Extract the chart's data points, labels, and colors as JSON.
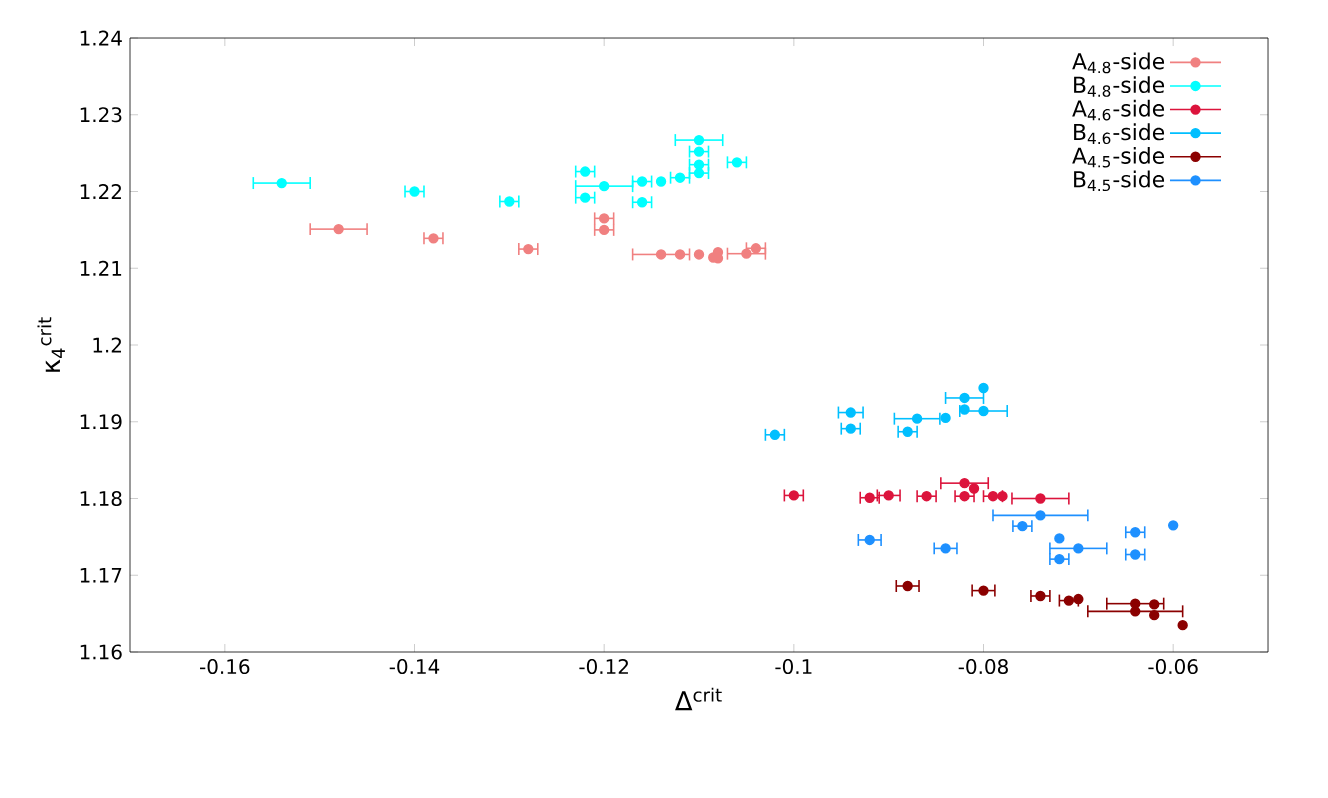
{
  "chart_data": {
    "type": "scatter",
    "xlabel": "Δ$^{crit}$",
    "ylabel": "κ$_{4}$$^{crit}$",
    "xlim": [
      -0.17,
      -0.05
    ],
    "ylim": [
      1.16,
      1.24
    ],
    "xticks": [
      -0.16,
      -0.14,
      -0.12,
      -0.1,
      -0.08,
      -0.06
    ],
    "yticks": [
      1.16,
      1.17,
      1.18,
      1.19,
      1.2,
      1.21,
      1.22,
      1.23,
      1.24
    ],
    "legend": "top right",
    "grid": false,
    "series": [
      {
        "name": "A$_{4.8}$-side",
        "color": "#f08080",
        "x": [
          -0.148,
          -0.138,
          -0.128,
          -0.12,
          -0.12,
          -0.114,
          -0.112,
          -0.11,
          -0.1085,
          -0.108,
          -0.108,
          -0.105,
          -0.104
        ],
        "values": [
          1.2151,
          1.2139,
          1.2125,
          1.2165,
          1.215,
          1.2118,
          1.2118,
          1.2118,
          1.2114,
          1.2121,
          1.2113,
          1.2119,
          1.2126
        ],
        "xerrors": [
          0.003,
          0.001,
          0.001,
          0.001,
          0.001,
          0.003,
          null,
          null,
          null,
          null,
          null,
          0.002,
          0.001
        ]
      },
      {
        "name": "B$_{4.8}$-side",
        "color": "#00ffff",
        "x": [
          -0.154,
          -0.14,
          -0.13,
          -0.122,
          -0.122,
          -0.12,
          -0.116,
          -0.116,
          -0.114,
          -0.112,
          -0.11,
          -0.11,
          -0.11,
          -0.11,
          -0.106
        ],
        "values": [
          1.2211,
          1.22,
          1.2187,
          1.2226,
          1.2192,
          1.2207,
          1.2213,
          1.2186,
          1.2213,
          1.2218,
          1.2267,
          1.2252,
          1.2235,
          1.2224,
          1.2238
        ],
        "xerrors": [
          0.003,
          0.001,
          0.001,
          0.001,
          0.001,
          0.003,
          0.001,
          0.001,
          null,
          0.001,
          0.0025,
          0.001,
          0.001,
          0.001,
          0.001
        ]
      },
      {
        "name": "A$_{4.6}$-side",
        "color": "#dc143c",
        "x": [
          -0.1,
          -0.092,
          -0.09,
          -0.086,
          -0.082,
          -0.081,
          -0.082,
          -0.079,
          -0.078,
          -0.074
        ],
        "values": [
          1.1804,
          1.1801,
          1.1804,
          1.1803,
          1.182,
          1.1813,
          1.1803,
          1.1803,
          1.1803,
          1.18
        ],
        "xerrors": [
          0.001,
          0.001,
          0.0012,
          0.001,
          0.0025,
          null,
          0.001,
          0.001,
          null,
          0.003
        ]
      },
      {
        "name": "B$_{4.6}$-side",
        "color": "#00bfff",
        "x": [
          -0.102,
          -0.094,
          -0.094,
          -0.088,
          -0.087,
          -0.084,
          -0.082,
          -0.082,
          -0.08,
          -0.08
        ],
        "values": [
          1.1883,
          1.1912,
          1.1891,
          1.1887,
          1.1904,
          1.1905,
          1.1931,
          1.1916,
          1.1944,
          1.1914
        ],
        "xerrors": [
          0.001,
          0.0013,
          0.001,
          0.001,
          0.0024,
          null,
          0.002,
          null,
          null,
          0.0025
        ]
      },
      {
        "name": "A$_{4.5}$-side",
        "color": "#8b0000",
        "x": [
          -0.088,
          -0.08,
          -0.074,
          -0.071,
          -0.07,
          -0.064,
          -0.064,
          -0.062,
          -0.062,
          -0.059
        ],
        "values": [
          1.1686,
          1.168,
          1.1673,
          1.1667,
          1.1669,
          1.1663,
          1.1653,
          1.1662,
          1.1648,
          1.1635
        ],
        "xerrors": [
          0.0012,
          0.0012,
          0.001,
          0.001,
          null,
          0.003,
          0.005,
          null,
          null,
          null
        ]
      },
      {
        "name": "B$_{4.5}$-side",
        "color": "#1e90ff",
        "x": [
          -0.092,
          -0.084,
          -0.0759,
          -0.074,
          -0.072,
          -0.072,
          -0.07,
          -0.064,
          -0.064,
          -0.06
        ],
        "values": [
          1.1746,
          1.1735,
          1.1764,
          1.1778,
          1.1748,
          1.1721,
          1.1735,
          1.1756,
          1.1727,
          1.1765
        ],
        "xerrors": [
          0.0012,
          0.0012,
          0.001,
          0.005,
          null,
          0.001,
          0.003,
          0.001,
          0.001,
          null
        ]
      }
    ]
  }
}
